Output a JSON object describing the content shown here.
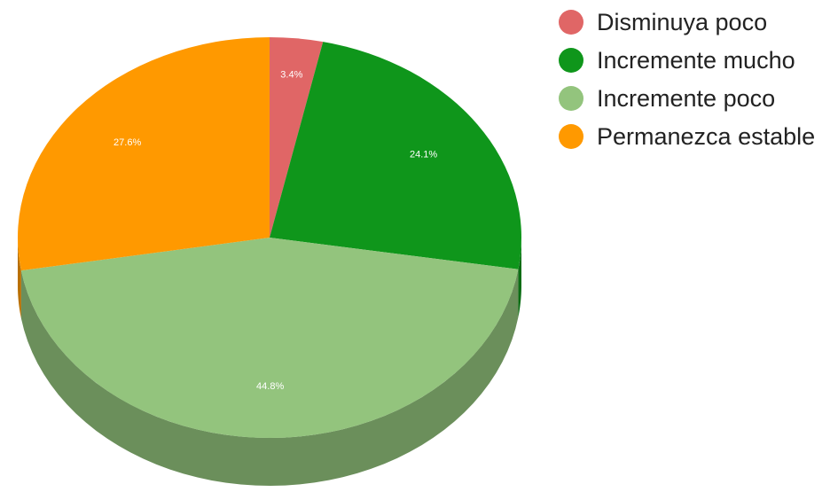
{
  "chart_data": {
    "type": "pie",
    "title": "",
    "style": "3d",
    "legend_position": "right",
    "slices": [
      {
        "label": "Disminuya poco",
        "value": 3.4,
        "display": "3.4%",
        "color": "#e06666",
        "side_color": "#a34a4a"
      },
      {
        "label": "Incremente mucho",
        "value": 24.1,
        "display": "24.1%",
        "color": "#0f961b",
        "side_color": "#0b6d14"
      },
      {
        "label": "Incremente poco",
        "value": 44.8,
        "display": "44.8%",
        "color": "#93c47d",
        "side_color": "#6b8f5b"
      },
      {
        "label": "Permanezca estable",
        "value": 27.6,
        "display": "27.6%",
        "color": "#ff9900",
        "side_color": "#b96f00"
      }
    ]
  }
}
